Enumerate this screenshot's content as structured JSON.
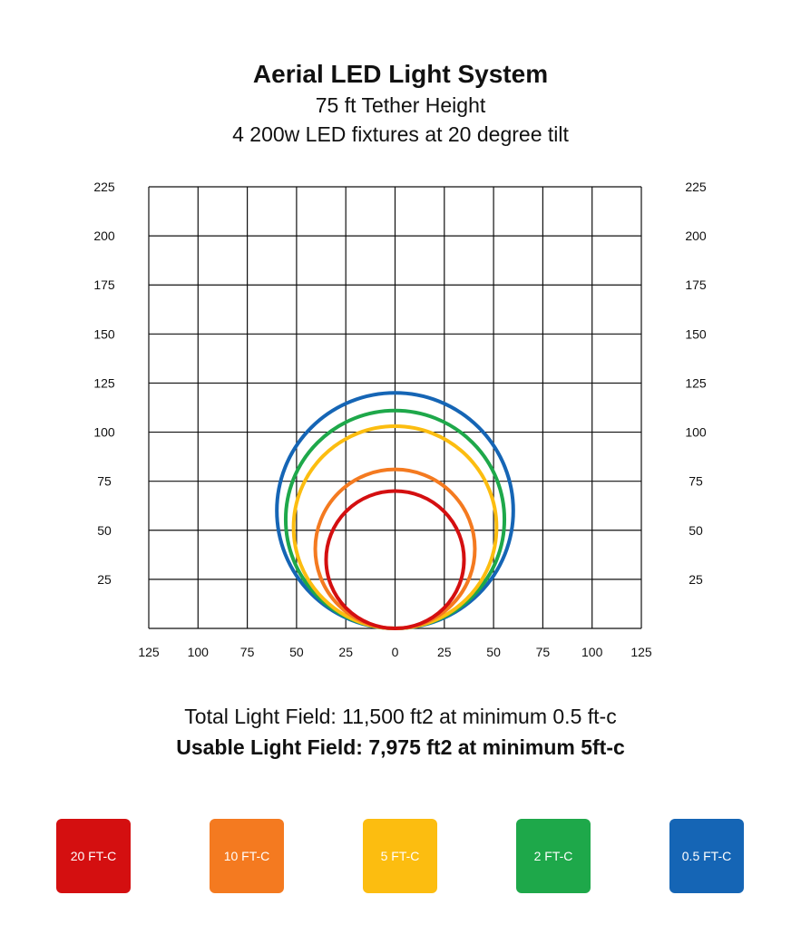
{
  "header": {
    "title": "Aerial LED Light System",
    "subtitle_1": "75 ft Tether Height",
    "subtitle_2": "4 200w LED fixtures at 20 degree tilt"
  },
  "summary": {
    "total": "Total Light Field: 11,500 ft2 at minimum 0.5 ft-c",
    "usable": "Usable Light Field: 7,975 ft2 at minimum 5ft-c"
  },
  "legend": [
    {
      "label": "20 FT-C",
      "color": "#d40f10"
    },
    {
      "label": "10 FT-C",
      "color": "#f47a20"
    },
    {
      "label": "5 FT-C",
      "color": "#fcbd10"
    },
    {
      "label": "2 FT-C",
      "color": "#1ea84a"
    },
    {
      "label": "0.5 FT-C",
      "color": "#1565b5"
    }
  ],
  "chart_data": {
    "type": "scatter",
    "title": "Aerial LED Light System",
    "xlabel": "",
    "ylabel": "",
    "x_ticks": [
      "125",
      "100",
      "75",
      "50",
      "25",
      "0",
      "25",
      "50",
      "75",
      "100",
      "125"
    ],
    "y_ticks": [
      "25",
      "50",
      "75",
      "100",
      "125",
      "150",
      "175",
      "200",
      "225"
    ],
    "xlim": [
      -125,
      125
    ],
    "ylim": [
      0,
      225
    ],
    "grid": true,
    "series": [
      {
        "name": "20 FT-C",
        "color": "#d40f10",
        "center": [
          0,
          35
        ],
        "radius": 35
      },
      {
        "name": "10 FT-C",
        "color": "#f47a20",
        "center": [
          0,
          40.5
        ],
        "radius": 40.5
      },
      {
        "name": "5 FT-C",
        "color": "#fcbd10",
        "center": [
          0,
          51.5
        ],
        "radius": 51.5
      },
      {
        "name": "2 FT-C",
        "color": "#1ea84a",
        "center": [
          0,
          55.5
        ],
        "radius": 55.5
      },
      {
        "name": "0.5 FT-C",
        "color": "#1565b5",
        "center": [
          0,
          60
        ],
        "radius": 60
      }
    ]
  }
}
